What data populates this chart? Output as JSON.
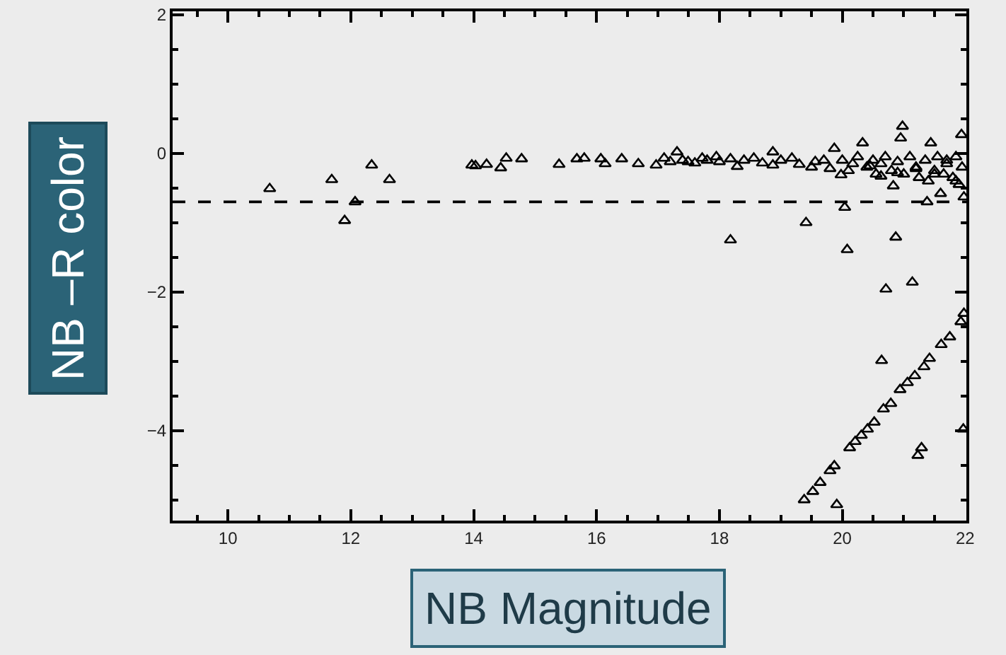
{
  "chart_data": {
    "type": "scatter",
    "xlabel": "NB Magnitude",
    "ylabel": "NB –R color",
    "xlim": [
      9.1,
      22.02
    ],
    "ylim": [
      -5.3,
      2.05
    ],
    "xticks": [
      10,
      12,
      14,
      16,
      18,
      20,
      22
    ],
    "yticks": [
      {
        "value": -4,
        "label": "−4"
      },
      {
        "value": -2,
        "label": "−2"
      },
      0,
      2
    ],
    "grid": false,
    "marker": "triangle",
    "ref_lines": [
      {
        "axis": "y",
        "value": -0.7,
        "line_style": "dashed",
        "color": "#000000"
      }
    ],
    "series": [
      {
        "color": "#000000",
        "x": [
          10.68,
          11.69,
          11.9,
          12.07,
          12.34,
          12.63,
          13.97,
          14.03,
          14.21,
          14.44,
          14.53,
          14.78,
          15.39,
          15.68,
          15.8,
          16.07,
          16.14,
          16.41,
          16.68,
          16.97,
          17.1,
          17.31,
          17.49,
          17.72,
          17.95,
          18.18,
          18.29,
          18.18,
          18.56,
          18.87,
          18.87,
          19.18,
          19.41,
          19.56,
          19.87,
          19.98,
          20.04,
          20.08,
          20.33,
          20.17,
          20.63,
          20.63,
          20.83,
          20.98,
          20.95,
          20.87,
          21.14,
          20.71,
          20.64,
          21.44,
          21.4,
          21.38,
          21.6,
          21.94,
          21.98,
          21.97,
          21.29,
          21.23,
          19.91,
          19.38,
          19.52,
          19.64,
          19.8,
          19.87,
          20.12,
          20.21,
          20.31,
          20.41,
          20.52,
          20.67,
          20.79,
          20.94,
          21.06,
          21.18,
          21.33,
          21.42,
          21.61,
          21.75,
          21.93,
          21.98,
          17.2,
          17.4,
          17.6,
          17.8,
          18.0,
          18.4,
          18.7,
          19.0,
          19.3,
          19.5,
          19.7,
          19.8,
          20.0,
          20.1,
          20.25,
          20.4,
          20.5,
          20.55,
          20.7,
          20.8,
          20.9,
          21.0,
          21.1,
          21.2,
          21.25,
          21.35,
          21.5,
          21.55,
          21.65,
          21.7,
          21.8,
          21.85,
          21.9,
          21.95,
          21.7,
          21.5,
          21.2,
          20.9,
          20.45,
          21.85
        ],
        "values": [
          -0.51,
          -0.38,
          -0.97,
          -0.7,
          -0.17,
          -0.38,
          -0.17,
          -0.18,
          -0.16,
          -0.21,
          -0.07,
          -0.08,
          -0.16,
          -0.08,
          -0.07,
          -0.08,
          -0.15,
          -0.08,
          -0.15,
          -0.17,
          -0.07,
          0.02,
          -0.12,
          -0.07,
          -0.05,
          -0.08,
          -0.19,
          -1.25,
          -0.07,
          0.02,
          -0.17,
          -0.07,
          -1.0,
          -0.12,
          0.07,
          -0.31,
          -0.78,
          -1.39,
          0.15,
          -0.15,
          -0.15,
          -0.33,
          -0.47,
          0.39,
          0.22,
          -1.21,
          -1.86,
          -1.96,
          -2.99,
          0.15,
          -0.4,
          -0.7,
          -0.58,
          0.27,
          -0.63,
          -3.98,
          -4.25,
          -4.36,
          -5.07,
          -5.0,
          -4.88,
          -4.75,
          -4.58,
          -4.51,
          -4.25,
          -4.16,
          -4.07,
          -3.98,
          -3.88,
          -3.69,
          -3.61,
          -3.41,
          -3.31,
          -3.21,
          -3.08,
          -2.96,
          -2.76,
          -2.65,
          -2.43,
          -2.31,
          -0.12,
          -0.1,
          -0.14,
          -0.1,
          -0.12,
          -0.1,
          -0.14,
          -0.1,
          -0.16,
          -0.2,
          -0.1,
          -0.22,
          -0.1,
          -0.25,
          -0.05,
          -0.2,
          -0.1,
          -0.3,
          -0.05,
          -0.25,
          -0.12,
          -0.3,
          -0.05,
          -0.2,
          -0.35,
          -0.1,
          -0.25,
          -0.05,
          -0.3,
          -0.15,
          -0.35,
          -0.05,
          -0.45,
          -0.2,
          -0.1,
          -0.3,
          -0.22,
          -0.28,
          -0.18,
          -0.4
        ]
      }
    ]
  }
}
